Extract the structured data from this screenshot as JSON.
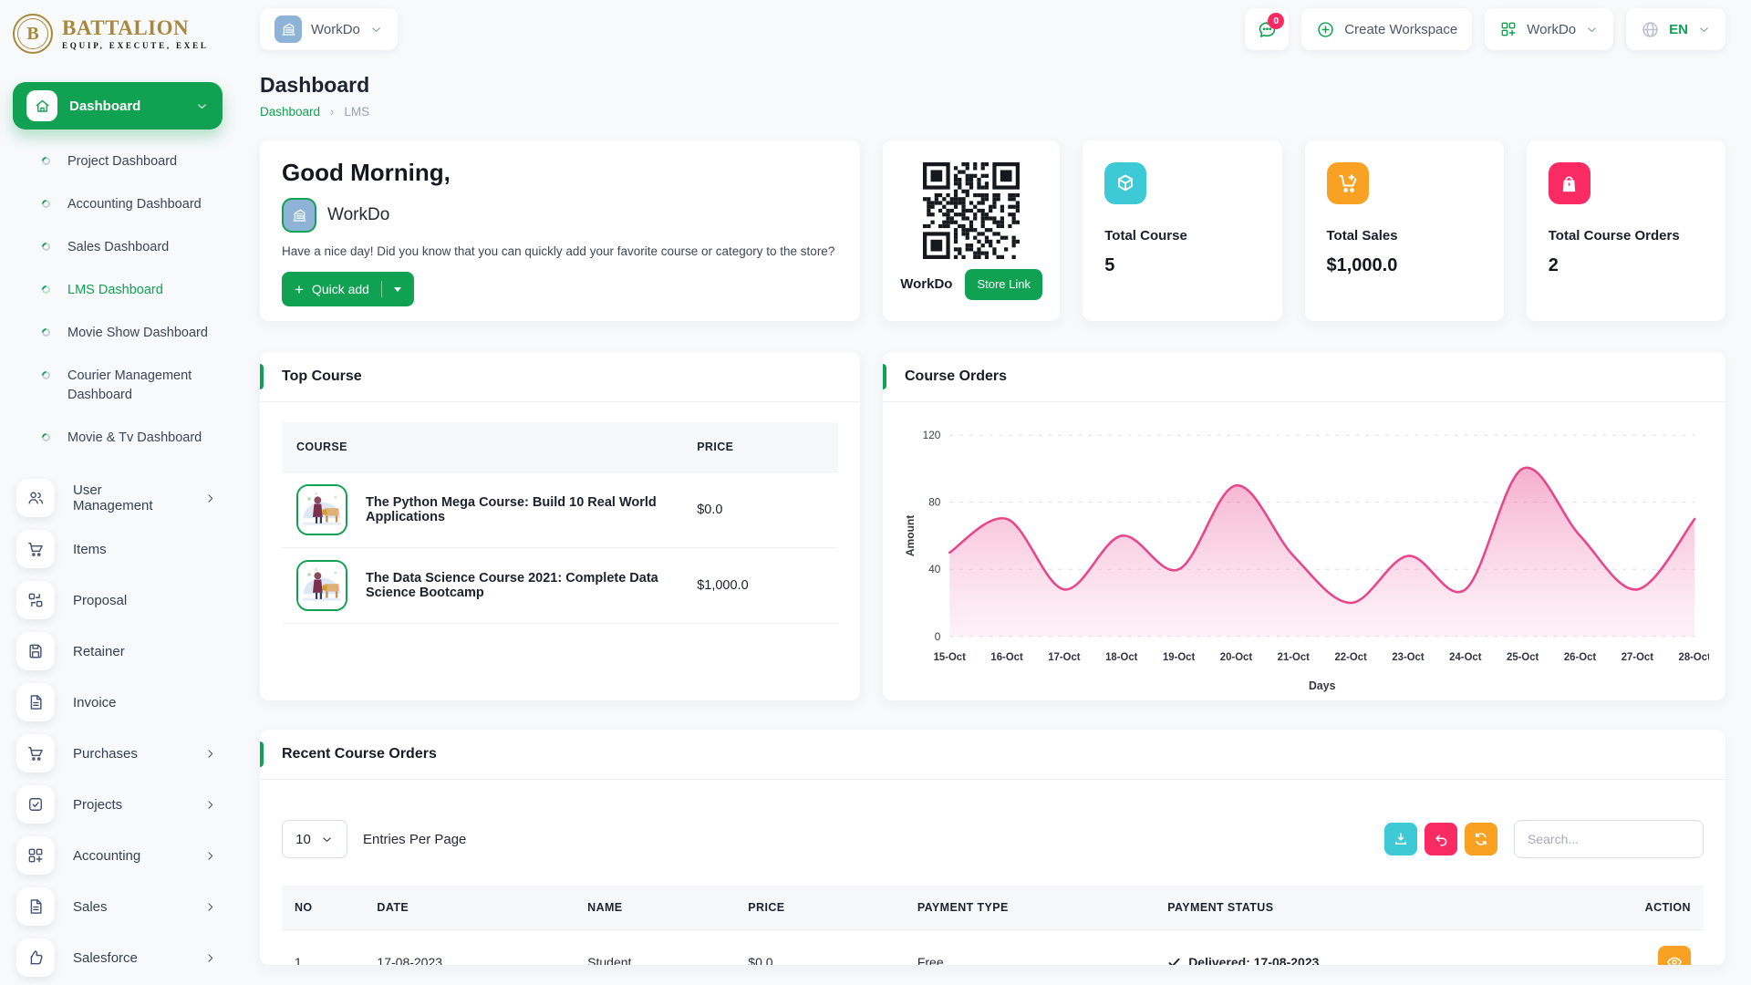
{
  "brand": {
    "name": "BATTALION",
    "tagline": "EQUIP, EXECUTE, EXEL"
  },
  "topbar": {
    "workspace_pill": "WorkDo",
    "messages_badge": "0",
    "create_workspace_label": "Create Workspace",
    "workspace_switcher_label": "WorkDo",
    "language_label": "EN"
  },
  "sidebar": {
    "dashboard_label": "Dashboard",
    "dashboard_children": [
      {
        "label": "Project Dashboard",
        "active": false
      },
      {
        "label": "Accounting Dashboard",
        "active": false
      },
      {
        "label": "Sales Dashboard",
        "active": false
      },
      {
        "label": "LMS Dashboard",
        "active": true
      },
      {
        "label": "Movie Show Dashboard",
        "active": false
      },
      {
        "label": "Courier Management Dashboard",
        "active": false
      },
      {
        "label": "Movie & Tv Dashboard",
        "active": false
      }
    ],
    "items": [
      {
        "label": "User Management",
        "icon": "users-icon",
        "chevron": true
      },
      {
        "label": "Items",
        "icon": "cart-icon",
        "chevron": false
      },
      {
        "label": "Proposal",
        "icon": "proposal-icon",
        "chevron": false
      },
      {
        "label": "Retainer",
        "icon": "retainer-icon",
        "chevron": false
      },
      {
        "label": "Invoice",
        "icon": "invoice-icon",
        "chevron": false
      },
      {
        "label": "Purchases",
        "icon": "cart-icon",
        "chevron": true
      },
      {
        "label": "Projects",
        "icon": "projects-icon",
        "chevron": true
      },
      {
        "label": "Accounting",
        "icon": "grid-plus-icon",
        "chevron": true
      },
      {
        "label": "Sales",
        "icon": "invoice-icon",
        "chevron": true
      },
      {
        "label": "Salesforce",
        "icon": "thumbs-up-icon",
        "chevron": true
      }
    ]
  },
  "page": {
    "title": "Dashboard",
    "breadcrumb": [
      "Dashboard",
      "LMS"
    ]
  },
  "greeting": {
    "title": "Good Morning,",
    "user": "WorkDo",
    "message": "Have a nice day! Did you know that you can quickly add your favorite course or category to the store?",
    "quick_add_label": "Quick add"
  },
  "qr_card": {
    "label": "WorkDo",
    "button_label": "Store Link"
  },
  "stats": [
    {
      "label": "Total Course",
      "value": "5",
      "color": "#3ec9d6",
      "icon": "package-icon"
    },
    {
      "label": "Total Sales",
      "value": "$1,000.0",
      "color": "#f9a123",
      "icon": "cart-plus-icon"
    },
    {
      "label": "Total Course Orders",
      "value": "2",
      "color": "#f92b62",
      "icon": "shopping-bag-icon"
    }
  ],
  "top_course": {
    "title": "Top Course",
    "columns": [
      "COURSE",
      "PRICE"
    ],
    "rows": [
      {
        "name": "The Python Mega Course: Build 10 Real World Applications",
        "price": "$0.0"
      },
      {
        "name": "The Data Science Course 2021: Complete Data Science Bootcamp",
        "price": "$1,000.0"
      }
    ]
  },
  "chart_data": {
    "type": "area",
    "title": "Course Orders",
    "x": [
      "15-Oct",
      "16-Oct",
      "17-Oct",
      "18-Oct",
      "19-Oct",
      "20-Oct",
      "21-Oct",
      "22-Oct",
      "23-Oct",
      "24-Oct",
      "25-Oct",
      "26-Oct",
      "27-Oct",
      "28-Oct"
    ],
    "series": [
      {
        "name": "Amount",
        "values": [
          50,
          70,
          28,
          60,
          40,
          90,
          48,
          20,
          48,
          28,
          100,
          60,
          28,
          70
        ]
      }
    ],
    "xlabel": "Days",
    "ylabel": "Amount",
    "ylim": [
      0,
      120
    ],
    "yticks": [
      0,
      40,
      80,
      120
    ],
    "grid": "horizontal-dashed",
    "legend": false,
    "line_color": "#e8468b",
    "fill": "pink-gradient"
  },
  "recent_orders": {
    "title": "Recent Course Orders",
    "entries_value": "10",
    "entries_label": "Entries Per Page",
    "search_placeholder": "Search...",
    "columns": [
      "NO",
      "DATE",
      "NAME",
      "PRICE",
      "PAYMENT TYPE",
      "PAYMENT STATUS",
      "ACTION"
    ],
    "rows": [
      {
        "no": "1",
        "date": "17-08-2023",
        "name": "Student",
        "price": "$0.0",
        "payment_type": "Free",
        "payment_status": "Delivered: 17-08-2023"
      }
    ]
  },
  "colors": {
    "primary_green": "#10a152",
    "accent_pink": "#f92b62",
    "accent_orange": "#f9a123",
    "accent_cyan": "#3ec9d6",
    "chart_line": "#e8468b",
    "logo_gold": "#a8893b",
    "workspace_icon_blue": "#8fb3d6",
    "page_background": "#f8f9fb"
  }
}
